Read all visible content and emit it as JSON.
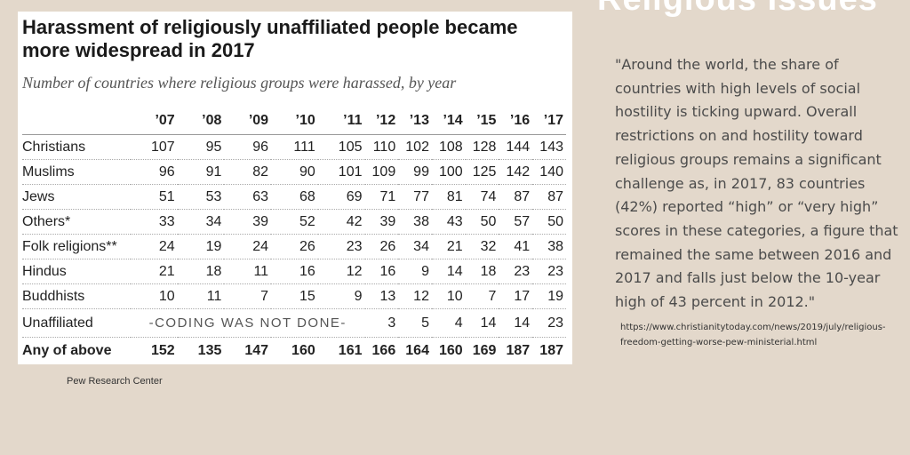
{
  "page": {
    "heading": "Religious Issues",
    "source": "Pew Research Center"
  },
  "table": {
    "title": "Harassment of religiously unaffiliated people became more widespread in 2017",
    "subtitle": "Number of countries where religious groups were harassed, by year",
    "years": [
      "’07",
      "’08",
      "’09",
      "’10",
      "’11",
      "’12",
      "’13",
      "’14",
      "’15",
      "’16",
      "’17"
    ],
    "rows": [
      {
        "label": "Christians",
        "values": [
          "107",
          "95",
          "96",
          "111",
          "105",
          "110",
          "102",
          "108",
          "128",
          "144",
          "143"
        ]
      },
      {
        "label": "Muslims",
        "values": [
          "96",
          "91",
          "82",
          "90",
          "101",
          "109",
          "99",
          "100",
          "125",
          "142",
          "140"
        ]
      },
      {
        "label": "Jews",
        "values": [
          "51",
          "53",
          "63",
          "68",
          "69",
          "71",
          "77",
          "81",
          "74",
          "87",
          "87"
        ]
      },
      {
        "label": "Others*",
        "values": [
          "33",
          "34",
          "39",
          "52",
          "42",
          "39",
          "38",
          "43",
          "50",
          "57",
          "50"
        ]
      },
      {
        "label": "Folk religions**",
        "values": [
          "24",
          "19",
          "24",
          "26",
          "23",
          "26",
          "34",
          "21",
          "32",
          "41",
          "38"
        ]
      },
      {
        "label": "Hindus",
        "values": [
          "21",
          "18",
          "11",
          "16",
          "12",
          "16",
          "9",
          "14",
          "18",
          "23",
          "23"
        ]
      },
      {
        "label": "Buddhists",
        "values": [
          "10",
          "11",
          "7",
          "15",
          "9",
          "13",
          "12",
          "10",
          "7",
          "17",
          "19"
        ]
      }
    ],
    "unaffiliated": {
      "label": "Unaffiliated",
      "coding_note": "-CODING WAS NOT DONE-",
      "values": [
        "3",
        "5",
        "4",
        "14",
        "14",
        "23"
      ]
    },
    "total": {
      "label": "Any of above",
      "values": [
        "152",
        "135",
        "147",
        "160",
        "161",
        "166",
        "164",
        "160",
        "169",
        "187",
        "187"
      ]
    }
  },
  "quote": {
    "text": "\"Around the world, the share of countries with high levels of social hostility is ticking upward. Overall restrictions on and hostility toward religious groups remains a significant challenge as, in 2017, 83 countries (42%) reported “high” or “very high” scores in these categories, a figure that remained the same between 2016 and 2017 and falls just below the 10-year high of 43 percent in 2012.\"",
    "url": "https://www.christianitytoday.com/news/2019/july/religious-freedom-getting-worse-pew-ministerial.html"
  }
}
